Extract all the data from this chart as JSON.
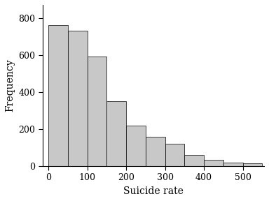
{
  "title": "",
  "xlabel": "Suicide rate",
  "ylabel": "Frequency",
  "bar_color": "#c8c8c8",
  "bar_edge_color": "#000000",
  "bar_edge_width": 0.5,
  "background_color": "#ffffff",
  "bins": [
    0,
    50,
    100,
    150,
    200,
    250,
    300,
    350,
    400,
    450,
    500,
    550
  ],
  "frequencies": [
    760,
    730,
    590,
    350,
    220,
    160,
    120,
    60,
    35,
    20,
    15
  ],
  "xlim": [
    -15,
    555
  ],
  "ylim": [
    0,
    870
  ],
  "yticks": [
    0,
    200,
    400,
    600,
    800
  ],
  "xticks": [
    0,
    100,
    200,
    300,
    400,
    500
  ],
  "xlabel_fontsize": 10,
  "ylabel_fontsize": 10,
  "tick_fontsize": 9,
  "figwidth": 3.84,
  "figheight": 2.88,
  "dpi": 100
}
